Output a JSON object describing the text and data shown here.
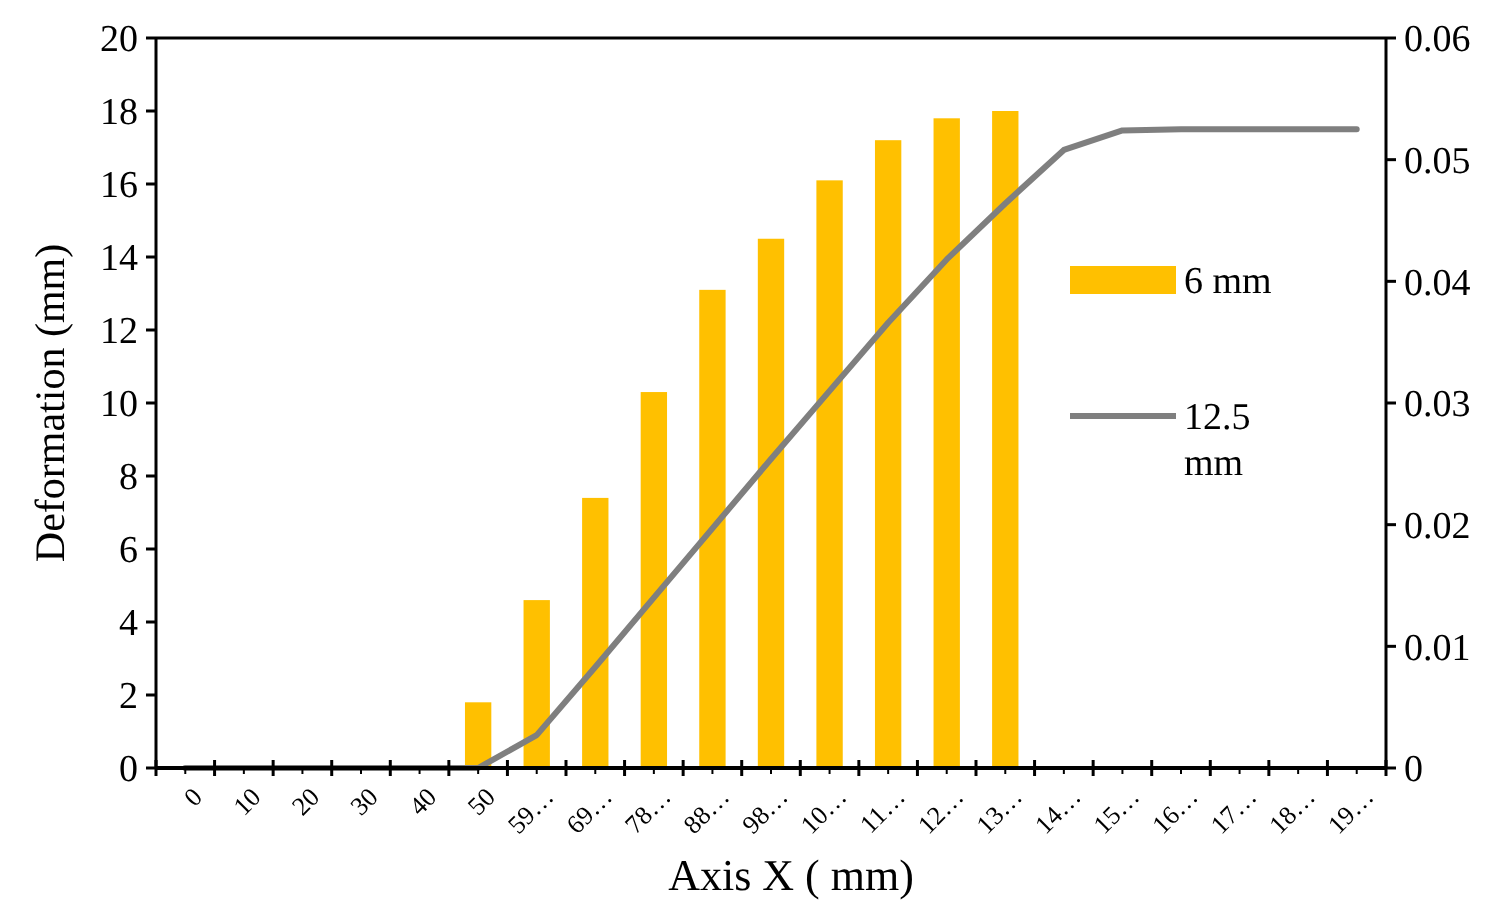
{
  "chart_data": {
    "type": "bar",
    "xlabel": "Axis X ( mm)",
    "ylabel": "Deformation (mm)",
    "categories": [
      "0",
      "10",
      "20",
      "30",
      "40",
      "50",
      "59…",
      "69…",
      "78…",
      "88…",
      "98…",
      "10…",
      "11…",
      "12…",
      "13…",
      "14…",
      "15…",
      "16…",
      "17…",
      "18…",
      "19…"
    ],
    "series": [
      {
        "name": "6 mm",
        "color": "#ffc000",
        "values": [
          null,
          null,
          null,
          null,
          null,
          1.8,
          4.6,
          7.4,
          10.3,
          13.1,
          14.5,
          16.1,
          17.2,
          17.8,
          18.0,
          null,
          null,
          null,
          null,
          null,
          null
        ]
      },
      {
        "name": "12.5 mm",
        "type": "line",
        "axis": "y2",
        "color": "#7f7f7f",
        "values": [
          0,
          0,
          0,
          0,
          0,
          0,
          0.0027,
          0.0083,
          0.014,
          0.0197,
          0.0254,
          0.031,
          0.0366,
          0.0418,
          0.0464,
          0.0508,
          0.0524,
          0.0525,
          0.0525,
          0.0525,
          0.0525
        ]
      }
    ],
    "ylim": [
      0,
      20
    ],
    "yticks": [
      0,
      2,
      4,
      6,
      8,
      10,
      12,
      14,
      16,
      18,
      20
    ],
    "y2lim": [
      0,
      0.06
    ],
    "y2ticks": [
      {
        "value": 0,
        "label": "0"
      },
      0.01,
      0.02,
      0.03,
      0.04,
      0.05,
      0.06
    ],
    "grid": false,
    "legend": "right",
    "marker": "none",
    "line_style": "solid"
  }
}
